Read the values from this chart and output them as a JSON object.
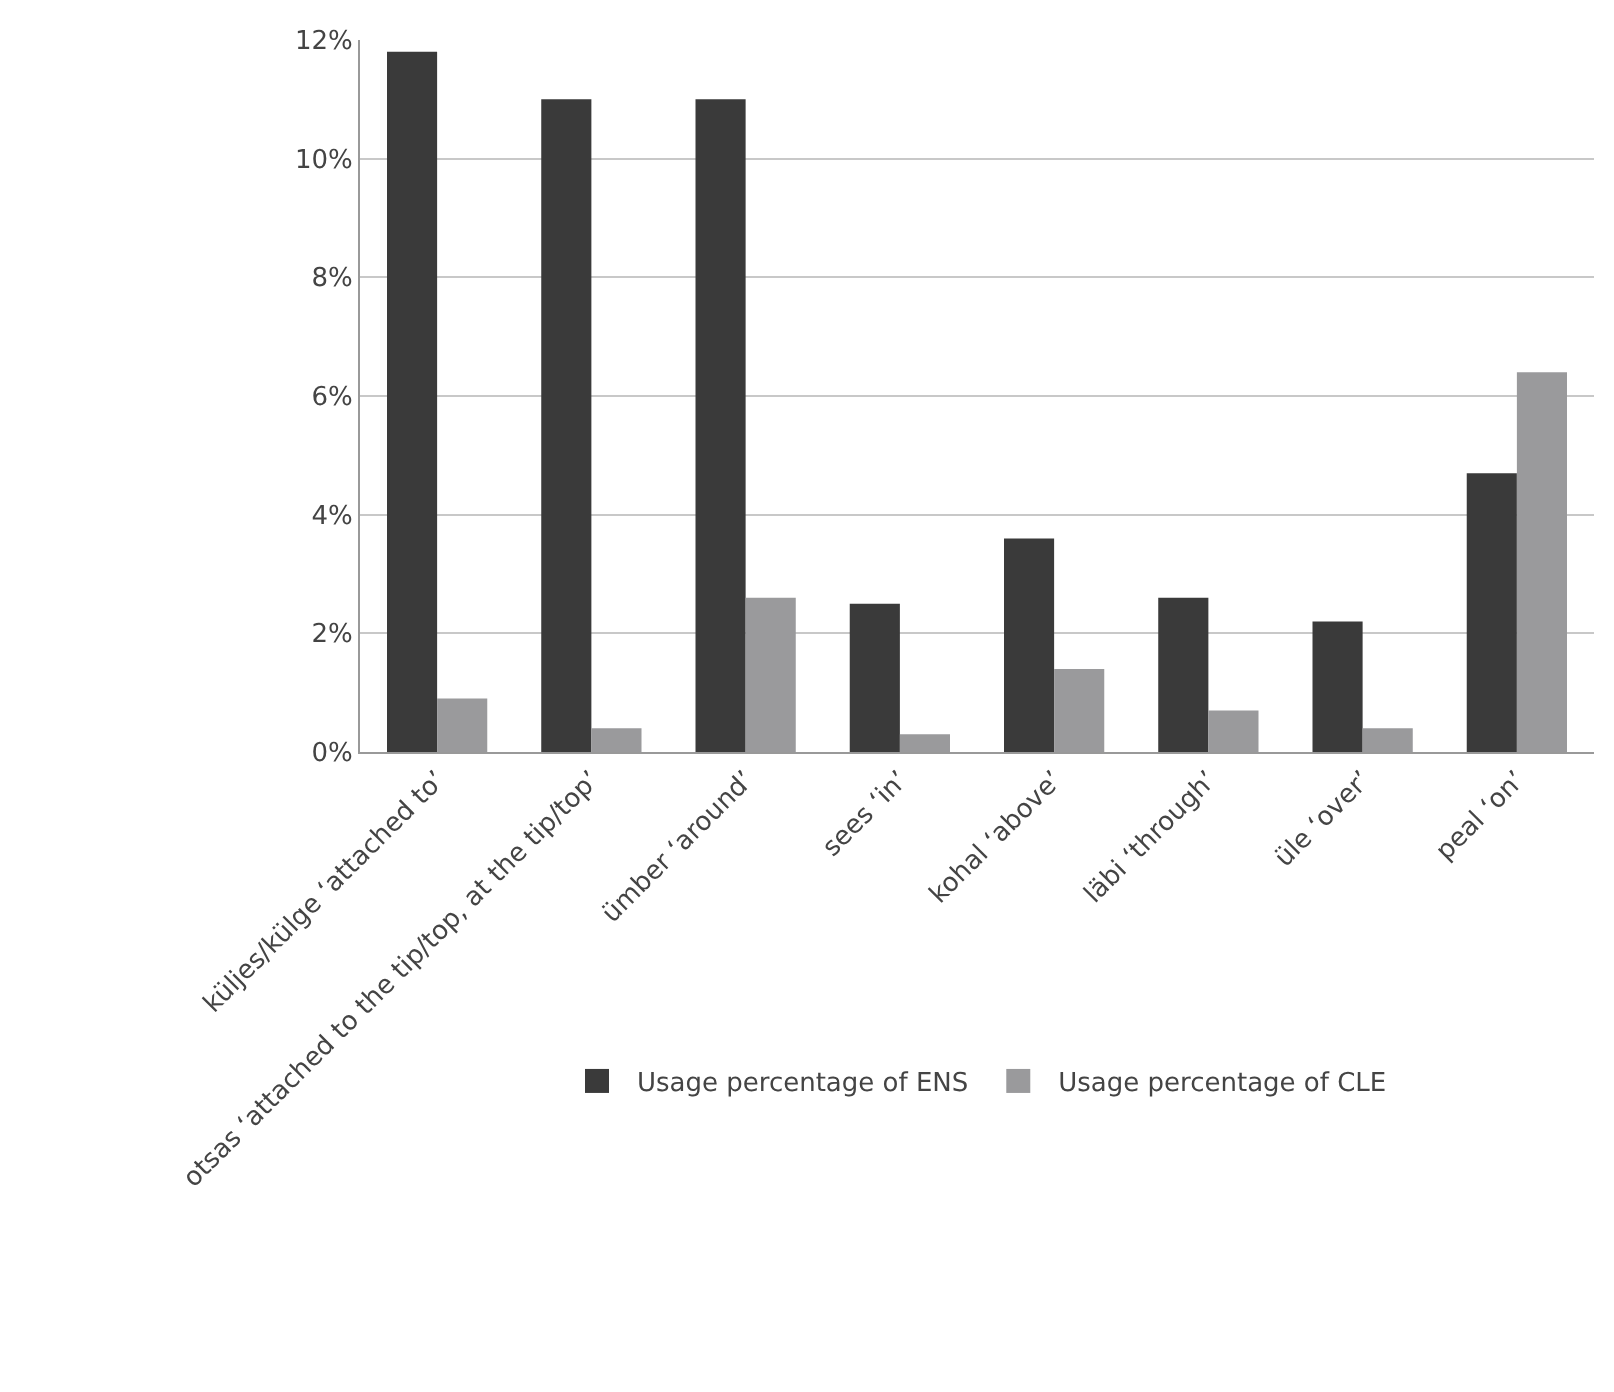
{
  "chart_data": {
    "type": "bar",
    "categories": [
      "küljes/külge ‘attached to’",
      "otsas ‘attached to the tip/top, at the tip/top’",
      "ümber ‘around’",
      "sees ‘in’",
      "kohal ‘above’",
      "läbi ‘through’",
      "üle ‘over’",
      "peal ‘on’"
    ],
    "series": [
      {
        "name": "Usage percentage of ENS",
        "color": "#3a3a3a",
        "values": [
          11.8,
          11.0,
          11.0,
          2.5,
          3.6,
          2.6,
          2.2,
          4.7
        ]
      },
      {
        "name": "Usage percentage of CLE",
        "color": "#9a9a9c",
        "values": [
          0.9,
          0.4,
          2.6,
          0.3,
          1.4,
          0.7,
          0.4,
          6.4
        ]
      }
    ],
    "ylim": [
      0,
      12
    ],
    "yticks": [
      {
        "value": 0,
        "label": "0%"
      },
      {
        "value": 2,
        "label": "2%"
      },
      {
        "value": 4,
        "label": "4%"
      },
      {
        "value": 6,
        "label": "6%"
      },
      {
        "value": 8,
        "label": "8%"
      },
      {
        "value": 10,
        "label": "10%"
      },
      {
        "value": 12,
        "label": "12%"
      }
    ],
    "grid": "y",
    "legend": "bottom"
  }
}
